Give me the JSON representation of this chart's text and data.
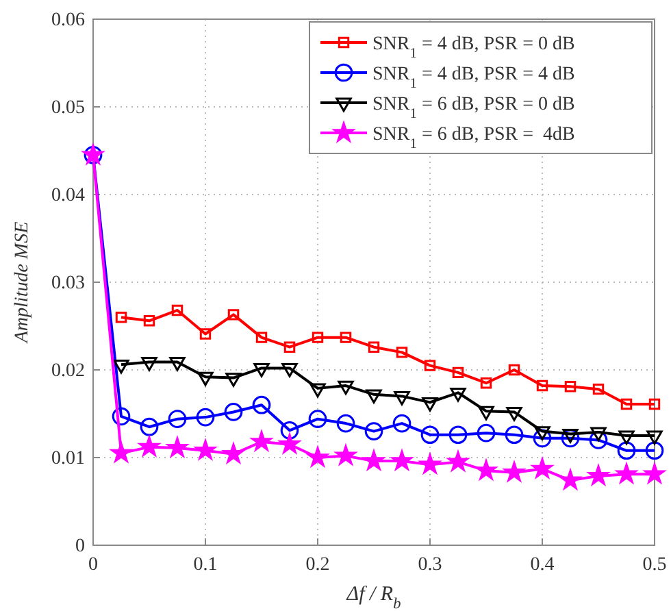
{
  "chart_data": {
    "type": "line",
    "xlabel": "Δf / R$_{b}$",
    "ylabel": "Amplitude MSE",
    "x": [
      0,
      0.025,
      0.05,
      0.075,
      0.1,
      0.125,
      0.15,
      0.175,
      0.2,
      0.225,
      0.25,
      0.275,
      0.3,
      0.325,
      0.35,
      0.375,
      0.4,
      0.425,
      0.45,
      0.475,
      0.5
    ],
    "series": [
      {
        "name": "SNR$_{1}$ = 4 dB, PSR = 0 dB",
        "color": "#ff0000",
        "marker": "square",
        "values": [
          null,
          0.026,
          0.0256,
          0.0268,
          0.0241,
          0.0263,
          0.0237,
          0.0226,
          0.0237,
          0.0237,
          0.0226,
          0.022,
          0.0205,
          0.0197,
          0.0185,
          0.02,
          0.0182,
          0.0181,
          0.0178,
          0.0161,
          0.0161
        ]
      },
      {
        "name": "SNR$_{1}$ = 4 dB, PSR = 4 dB",
        "color": "#0000ff",
        "marker": "circle",
        "values": [
          0.0445,
          0.0147,
          0.0135,
          0.0144,
          0.0146,
          0.0152,
          0.016,
          0.0131,
          0.0144,
          0.0139,
          0.013,
          0.0139,
          0.0126,
          0.0126,
          0.0128,
          0.0126,
          0.0122,
          0.0122,
          0.012,
          0.0108,
          0.0108
        ]
      },
      {
        "name": "SNR$_{1}$ = 6 dB, PSR = 0 dB",
        "color": "#000000",
        "marker": "triangle",
        "values": [
          null,
          0.0206,
          0.0209,
          0.0209,
          0.0192,
          0.0191,
          0.0202,
          0.0202,
          0.0179,
          0.0182,
          0.0172,
          0.017,
          0.0163,
          0.0174,
          0.0153,
          0.0152,
          0.013,
          0.0127,
          0.0129,
          0.0125,
          0.0125
        ]
      },
      {
        "name": "SNR$_{1}$ = 6 dB, PSR =  4dB",
        "color": "#ff00ff",
        "marker": "star",
        "values": [
          0.0445,
          0.0105,
          0.0112,
          0.0111,
          0.0108,
          0.0104,
          0.0118,
          0.0115,
          0.01,
          0.0102,
          0.0096,
          0.0096,
          0.0092,
          0.0095,
          0.0085,
          0.0083,
          0.0087,
          0.0074,
          0.0079,
          0.0081,
          0.0081
        ]
      }
    ],
    "xlim": [
      0,
      0.5
    ],
    "xticks": [
      0,
      0.1,
      0.2,
      0.3,
      0.4,
      0.5
    ],
    "ylim": [
      0,
      0.06
    ],
    "yticks": [
      0,
      0.01,
      0.02,
      0.03,
      0.04,
      0.05,
      0.06
    ],
    "grid": true,
    "legend": "top right",
    "line_style": "solid"
  }
}
